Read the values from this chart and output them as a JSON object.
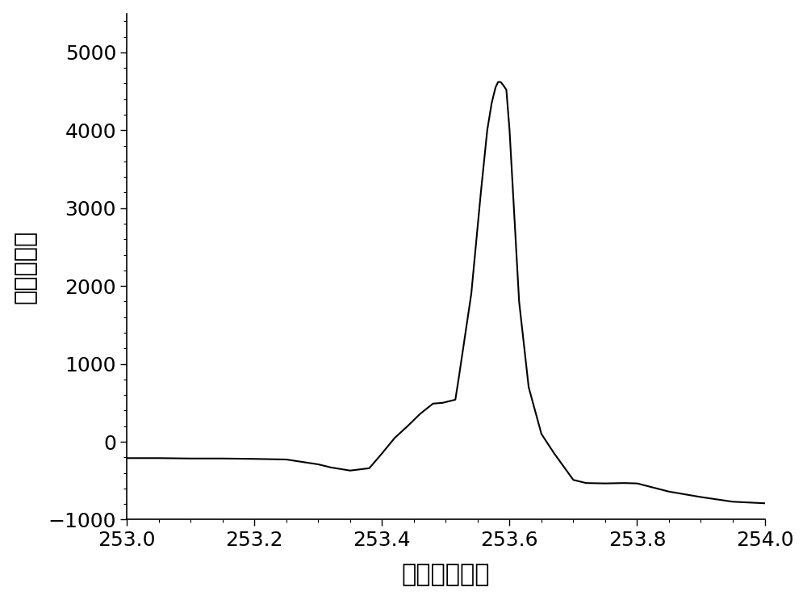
{
  "x": [
    253.0,
    253.05,
    253.1,
    253.15,
    253.2,
    253.25,
    253.3,
    253.32,
    253.35,
    253.38,
    253.4,
    253.42,
    253.44,
    253.46,
    253.48,
    253.495,
    253.505,
    253.515,
    253.52,
    253.54,
    253.555,
    253.565,
    253.572,
    253.578,
    253.582,
    253.586,
    253.59,
    253.595,
    253.6,
    253.615,
    253.63,
    253.65,
    253.67,
    253.7,
    253.72,
    253.75,
    253.78,
    253.8,
    253.85,
    253.9,
    253.95,
    254.0
  ],
  "y": [
    -210,
    -210,
    -215,
    -215,
    -220,
    -228,
    -290,
    -330,
    -370,
    -340,
    -150,
    50,
    200,
    360,
    490,
    500,
    520,
    540,
    800,
    1900,
    3200,
    4000,
    4350,
    4550,
    4620,
    4620,
    4580,
    4520,
    4000,
    1800,
    700,
    100,
    -150,
    -490,
    -530,
    -535,
    -530,
    -535,
    -640,
    -710,
    -770,
    -790
  ],
  "xlim": [
    253.0,
    254.0
  ],
  "ylim": [
    -1000,
    5500
  ],
  "xticks": [
    253.0,
    253.2,
    253.4,
    253.6,
    253.8,
    254.0
  ],
  "yticks": [
    -1000,
    0,
    1000,
    2000,
    3000,
    4000,
    5000
  ],
  "xlabel": "波长（纳米）",
  "ylabel": "净信号强度",
  "line_color": "#000000",
  "line_width": 1.5,
  "background_color": "#ffffff",
  "xlabel_fontsize": 22,
  "ylabel_fontsize": 22,
  "tick_fontsize": 18
}
